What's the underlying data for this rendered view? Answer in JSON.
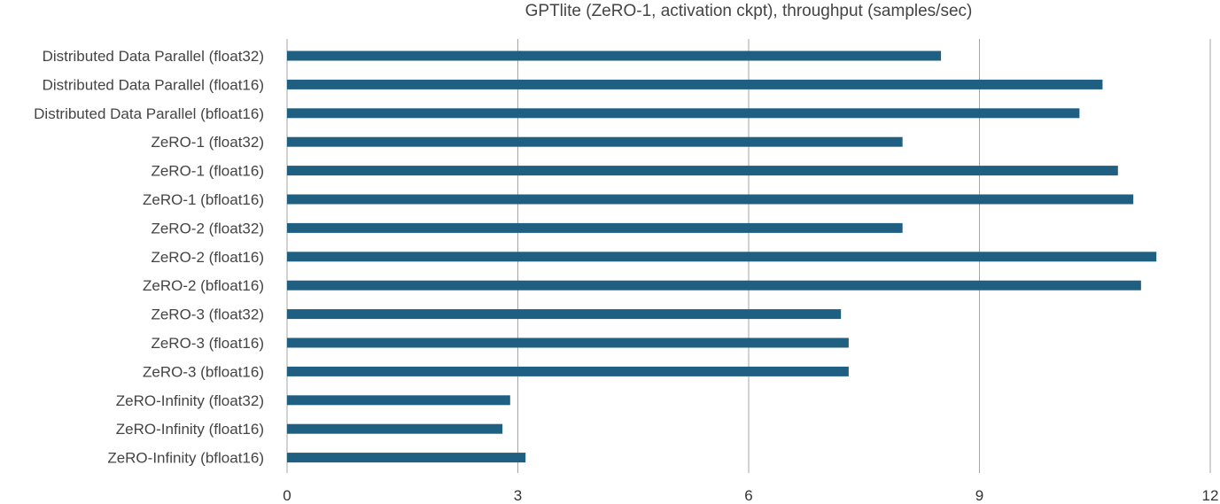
{
  "chart_data": {
    "type": "bar",
    "orientation": "horizontal",
    "title": "GPTlite (ZeRO-1, activation ckpt), throughput (samples/sec)",
    "xlabel": "",
    "ylabel": "",
    "categories": [
      "Distributed Data Parallel (float32)",
      "Distributed Data Parallel (float16)",
      "Distributed Data Parallel (bfloat16)",
      "ZeRO-1 (float32)",
      "ZeRO-1 (float16)",
      "ZeRO-1 (bfloat16)",
      "ZeRO-2 (float32)",
      "ZeRO-2 (float16)",
      "ZeRO-2 (bfloat16)",
      "ZeRO-3 (float32)",
      "ZeRO-3 (float16)",
      "ZeRO-3 (bfloat16)",
      "ZeRO-Infinity (float32)",
      "ZeRO-Infinity (float16)",
      "ZeRO-Infinity (bfloat16)"
    ],
    "values": [
      8.5,
      10.6,
      10.3,
      8.0,
      10.8,
      11.0,
      8.0,
      11.3,
      11.1,
      7.2,
      7.3,
      7.3,
      2.9,
      2.8,
      3.1
    ],
    "xlim": [
      0,
      12
    ],
    "xticks": [
      "0",
      "3",
      "6",
      "9",
      "12"
    ],
    "grid": "vertical",
    "legend": "none",
    "bar_color": "#1f5f82",
    "grid_color": "#a6a6a6"
  }
}
